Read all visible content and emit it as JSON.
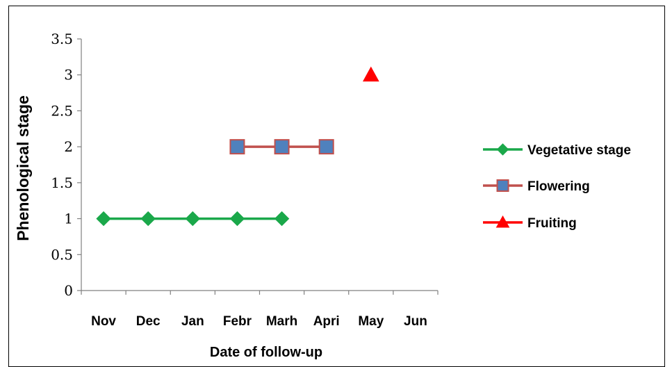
{
  "chart_data": {
    "type": "line",
    "title": "",
    "xlabel": "Date of follow-up",
    "ylabel": "Phenological  stage",
    "categories": [
      "Nov",
      "Dec",
      "Jan",
      "Febr",
      "Marh",
      "Apri",
      "May",
      "Jun"
    ],
    "ylim": [
      0,
      3.5
    ],
    "yticks": [
      "0",
      "0.5",
      "1",
      "1.5",
      "2",
      "2.5",
      "3",
      "3.5"
    ],
    "grid": false,
    "legend_position": "right",
    "series": [
      {
        "name": "Vegetative stage",
        "marker": "diamond",
        "line_color": "#1aa84a",
        "marker_color": "#1aa84a",
        "points": [
          [
            "Nov",
            1
          ],
          [
            "Dec",
            1
          ],
          [
            "Jan",
            1
          ],
          [
            "Febr",
            1
          ],
          [
            "Marh",
            1
          ]
        ]
      },
      {
        "name": "Flowering",
        "marker": "square",
        "line_color": "#c0504d",
        "marker_color": "#4f81bd",
        "points": [
          [
            "Febr",
            2
          ],
          [
            "Marh",
            2
          ],
          [
            "Apri",
            2
          ]
        ]
      },
      {
        "name": "Fruiting",
        "marker": "triangle",
        "line_color": "#ff0000",
        "marker_color": "#ff0000",
        "points": [
          [
            "May",
            3
          ]
        ]
      }
    ]
  }
}
